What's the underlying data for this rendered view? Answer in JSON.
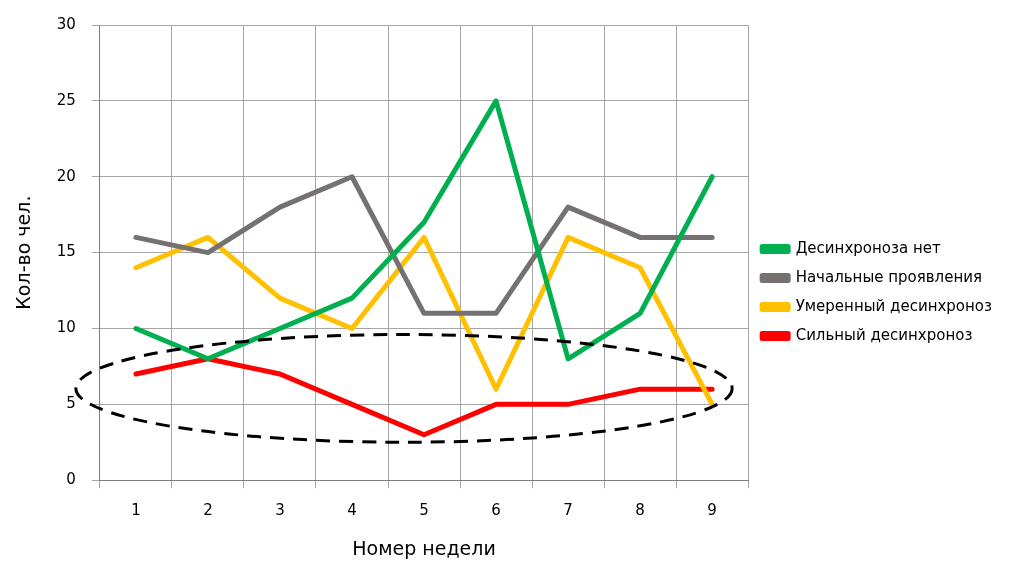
{
  "chart_data": {
    "type": "line",
    "xlabel": "Номер недели",
    "ylabel": "Кол-во чел.",
    "categories": [
      "1",
      "2",
      "3",
      "4",
      "5",
      "6",
      "7",
      "8",
      "9"
    ],
    "series": [
      {
        "name": "Десинхроноза нет",
        "color": "#00b050",
        "values": [
          10,
          8,
          10,
          12,
          17,
          25,
          8,
          11,
          20
        ]
      },
      {
        "name": "Начальные проявления",
        "color": "#767171",
        "values": [
          16,
          15,
          18,
          20,
          11,
          11,
          18,
          16,
          16
        ]
      },
      {
        "name": "Умеренный десинхроноз",
        "color": "#ffc000",
        "values": [
          14,
          16,
          12,
          10,
          16,
          6,
          16,
          14,
          5
        ]
      },
      {
        "name": "Сильный десинхроноз",
        "color": "#ff0000",
        "values": [
          7,
          8,
          7,
          5,
          3,
          5,
          5,
          6,
          6
        ]
      }
    ],
    "ylim": [
      0,
      30
    ],
    "yticks": [
      0,
      5,
      10,
      15,
      20,
      25,
      30
    ],
    "grid": true,
    "legend": "right",
    "marker": "none",
    "line_style": "solid"
  }
}
